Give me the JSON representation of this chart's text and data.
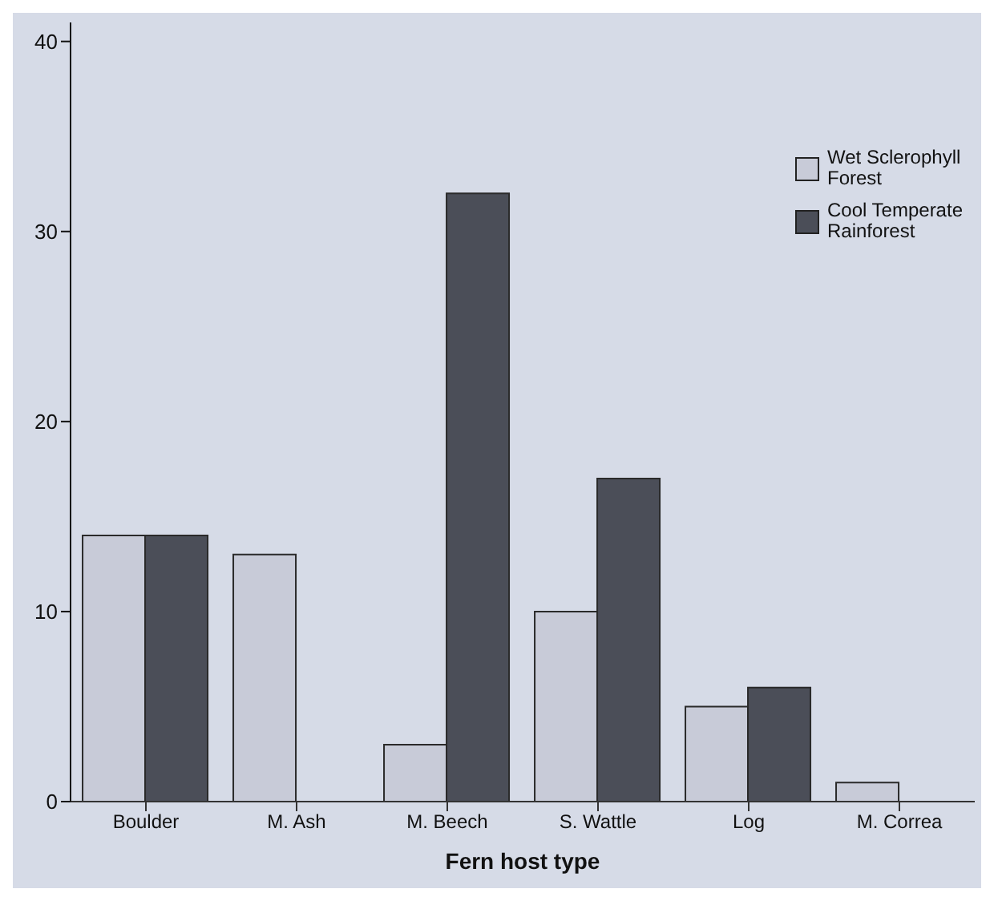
{
  "chart_data": {
    "type": "bar",
    "xlabel": "Fern host type",
    "categories": [
      "Boulder",
      "M. Ash",
      "M. Beech",
      "S. Wattle",
      "Log",
      "M. Correa"
    ],
    "series": [
      {
        "name": "Wet Sclerophyll Forest",
        "color": "#c8cbd8",
        "values": [
          14,
          13,
          3,
          10,
          5,
          1
        ]
      },
      {
        "name": "Cool Temperate Rainforest",
        "color": "#4b4e58",
        "values": [
          14,
          0,
          32,
          17,
          6,
          0
        ]
      }
    ],
    "ylim": [
      0,
      41
    ],
    "yticks": [
      0,
      10,
      20,
      30,
      40
    ],
    "legend": "top right"
  }
}
